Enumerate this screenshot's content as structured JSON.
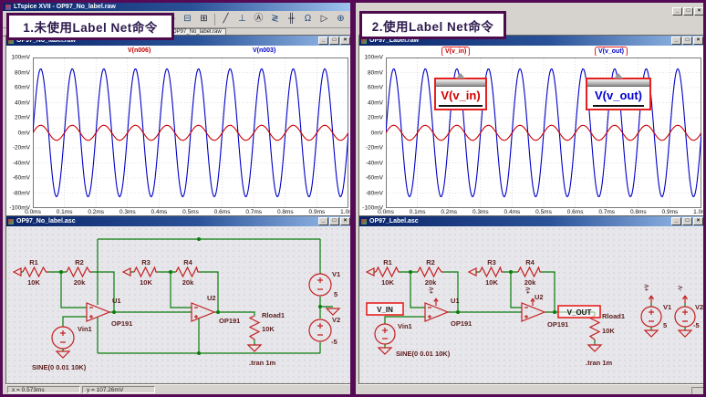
{
  "app": {
    "title": "LTspice XVII - OP97_No_label.raw",
    "tab": "OP97_No_label.raw",
    "status": {
      "x": "x = 0.573ms",
      "y": "y = 107.26mV"
    },
    "window_controls": {
      "minimize": "_",
      "maximize": "□",
      "close": "×"
    }
  },
  "annotations": {
    "left": "1.未使用Label Net命令",
    "right": "2.使用Label Net命令"
  },
  "toolbar": {
    "icons": [
      {
        "name": "new-schematic-icon",
        "glyph": "▤"
      },
      {
        "name": "open-file-icon",
        "glyph": "▥"
      },
      {
        "name": "save-icon",
        "glyph": "▦"
      },
      {
        "name": "tile-windows-icon",
        "glyph": "❐"
      },
      {
        "name": "run-icon",
        "glyph": "▷"
      },
      {
        "name": "halt-icon",
        "glyph": "▣"
      },
      {
        "name": "cut-icon",
        "glyph": "✂"
      },
      {
        "name": "copy-icon",
        "glyph": "❏"
      },
      {
        "name": "paste-icon",
        "glyph": "▨"
      },
      {
        "name": "find-icon",
        "glyph": "◎"
      },
      {
        "name": "print-icon",
        "glyph": "⊟"
      },
      {
        "name": "print-preview-icon",
        "glyph": "⊞"
      },
      {
        "name": "draw-line-icon",
        "glyph": "╱"
      },
      {
        "name": "ground-icon",
        "glyph": "⊥"
      },
      {
        "name": "label-net-icon",
        "glyph": "Ⓐ"
      },
      {
        "name": "resistor-icon",
        "glyph": "≷"
      },
      {
        "name": "capacitor-icon",
        "glyph": "╫"
      },
      {
        "name": "inductor-icon",
        "glyph": "Ω"
      },
      {
        "name": "diode-icon",
        "glyph": "▷"
      },
      {
        "name": "component-icon",
        "glyph": "⊕"
      }
    ]
  },
  "colors": {
    "frame_purple": "#550a55",
    "trace_red": "#c80000",
    "trace_blue": "#0000c8",
    "wire_green": "#0a7d0a",
    "component_red": "#c42020",
    "highlight_red": "#e62020"
  },
  "panels": {
    "left": {
      "plot": {
        "title": "OP97_No_label.raw",
        "legend": [
          {
            "label": "V(n006)",
            "color": "#c80000"
          },
          {
            "label": "V(n003)",
            "color": "#0000c8"
          }
        ],
        "y_ticks": [
          "100mV",
          "80mV",
          "60mV",
          "40mV",
          "20mV",
          "0mV",
          "-20mV",
          "-40mV",
          "-60mV",
          "-80mV",
          "-100mV"
        ],
        "x_ticks": [
          "0.0ms",
          "0.1ms",
          "0.2ms",
          "0.3ms",
          "0.4ms",
          "0.5ms",
          "0.6ms",
          "0.7ms",
          "0.8ms",
          "0.9ms",
          "1.0ms"
        ],
        "chart": {
          "type": "line",
          "x_range_ms": [
            0,
            1
          ],
          "y_range_mv": [
            -100,
            100
          ],
          "series": [
            {
              "name": "V(n003)",
              "color": "#0000c8",
              "amplitude_mv": 85,
              "cycles": 10
            },
            {
              "name": "V(n006)",
              "color": "#c80000",
              "amplitude_mv": 10,
              "cycles": 10
            }
          ]
        }
      },
      "schematic": {
        "title": "OP97_No_label.asc",
        "r1": "R1",
        "r1_value": "10K",
        "r2": "R2",
        "r2_value": "20k",
        "r3": "R3",
        "r3_value": "10K",
        "r4": "R4",
        "r4_value": "20k",
        "u1": "U1",
        "u1_part": "OP191",
        "u2": "U2",
        "u2_part": "OP191",
        "vin": "Vin1",
        "vin_model": "SINE(0 0.01 10K)",
        "rload": "Rload1",
        "rload_value": "10K",
        "directive": ".tran 1m",
        "v1": "V1",
        "v1_value": "5",
        "v2": "V2",
        "v2_value": "-5"
      }
    },
    "right": {
      "plot": {
        "title": "OP97_Label.raw",
        "legend": [
          {
            "label": "V(v_in)",
            "color": "#c80000"
          },
          {
            "label": "V(v_out)",
            "color": "#0000c8"
          }
        ],
        "callouts": [
          {
            "text": "V(v_in)",
            "color": "#d40000"
          },
          {
            "text": "V(v_out)",
            "color": "#0000d4"
          }
        ],
        "y_ticks": [
          "100mV",
          "80mV",
          "60mV",
          "40mV",
          "20mV",
          "0mV",
          "-20mV",
          "-40mV",
          "-60mV",
          "-80mV",
          "-100mV"
        ],
        "x_ticks": [
          "0.0ms",
          "0.1ms",
          "0.2ms",
          "0.3ms",
          "0.4ms",
          "0.5ms",
          "0.6ms",
          "0.7ms",
          "0.8ms",
          "0.9ms",
          "1.0ms"
        ],
        "chart": {
          "type": "line",
          "x_range_ms": [
            0,
            1
          ],
          "y_range_mv": [
            -100,
            100
          ],
          "series": [
            {
              "name": "V(v_out)",
              "color": "#0000c8",
              "amplitude_mv": 85,
              "cycles": 10
            },
            {
              "name": "V(v_in)",
              "color": "#c80000",
              "amplitude_mv": 10,
              "cycles": 10
            }
          ]
        }
      },
      "schematic": {
        "title": "OP97_Label.asc",
        "r1": "R1",
        "r1_value": "10K",
        "r2": "R2",
        "r2_value": "20k",
        "r3": "R3",
        "r3_value": "10K",
        "r4": "R4",
        "r4_value": "20k",
        "u1": "U1",
        "u1_part": "OP191",
        "u2": "U2",
        "u2_part": "OP191",
        "vin": "Vin1",
        "vin_model": "SINE(0 0.01 10K)",
        "rload": "Rload1",
        "rload_value": "10K",
        "directive": ".tran 1m",
        "v1": "V1",
        "v1_value": "5",
        "v2": "V2",
        "v2_value": "-5",
        "net_in": "V_IN",
        "net_out": "V_OUT",
        "vplus": "+V",
        "vminus": "-V"
      }
    }
  }
}
